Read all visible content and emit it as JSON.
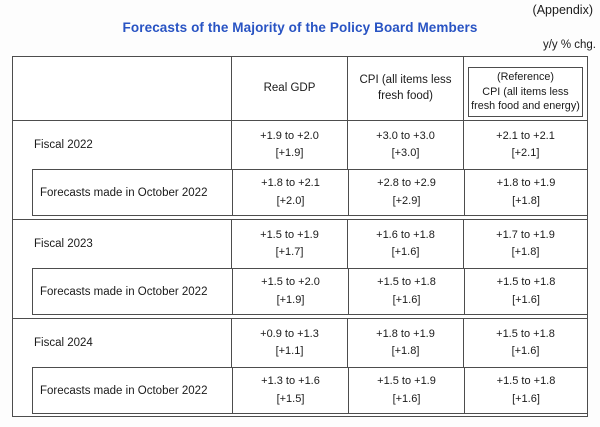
{
  "page": {
    "appendix_label": "(Appendix)",
    "title": "Forecasts of the Majority of the Policy Board Members",
    "unit_note": "y/y % chg.",
    "title_color": "#2853c3",
    "border_color": "#4d4d4d"
  },
  "table": {
    "header": {
      "row_label": "",
      "real_gdp": "Real GDP",
      "cpi": "CPI (all items less fresh food)",
      "reference_line1": "(Reference)",
      "reference_line2": "CPI (all items less fresh food and energy)"
    },
    "sections": [
      {
        "label": "Fiscal 2022",
        "values": [
          {
            "range": "+1.9 to +2.0",
            "point": "[+1.9]"
          },
          {
            "range": "+3.0 to +3.0",
            "point": "[+3.0]"
          },
          {
            "range": "+2.1 to +2.1",
            "point": "[+2.1]"
          }
        ],
        "sub_label": "Forecasts made in October 2022",
        "sub_values": [
          {
            "range": "+1.8 to +2.1",
            "point": "[+2.0]"
          },
          {
            "range": "+2.8 to +2.9",
            "point": "[+2.9]"
          },
          {
            "range": "+1.8 to +1.9",
            "point": "[+1.8]"
          }
        ]
      },
      {
        "label": "Fiscal 2023",
        "values": [
          {
            "range": "+1.5 to +1.9",
            "point": "[+1.7]"
          },
          {
            "range": "+1.6 to +1.8",
            "point": "[+1.6]"
          },
          {
            "range": "+1.7 to +1.9",
            "point": "[+1.8]"
          }
        ],
        "sub_label": "Forecasts made in October 2022",
        "sub_values": [
          {
            "range": "+1.5 to +2.0",
            "point": "[+1.9]"
          },
          {
            "range": "+1.5 to +1.8",
            "point": "[+1.6]"
          },
          {
            "range": "+1.5 to +1.8",
            "point": "[+1.6]"
          }
        ]
      },
      {
        "label": "Fiscal 2024",
        "values": [
          {
            "range": "+0.9 to +1.3",
            "point": "[+1.1]"
          },
          {
            "range": "+1.8 to +1.9",
            "point": "[+1.8]"
          },
          {
            "range": "+1.5 to +1.8",
            "point": "[+1.6]"
          }
        ],
        "sub_label": "Forecasts made in October 2022",
        "sub_values": [
          {
            "range": "+1.3 to +1.6",
            "point": "[+1.5]"
          },
          {
            "range": "+1.5 to +1.9",
            "point": "[+1.6]"
          },
          {
            "range": "+1.5 to +1.8",
            "point": "[+1.6]"
          }
        ]
      }
    ]
  }
}
